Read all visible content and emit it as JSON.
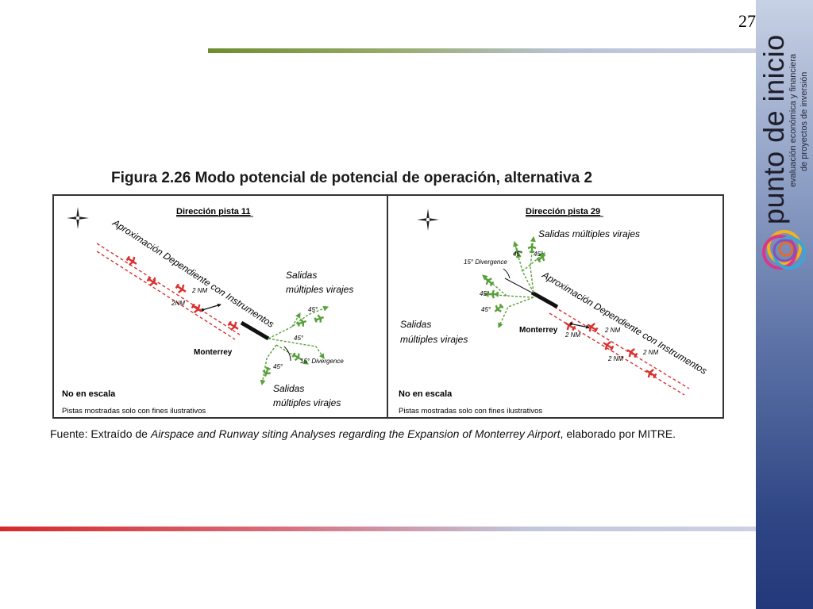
{
  "slide": {
    "page_number": "27",
    "brand": {
      "name": "punto de inicio",
      "tagline_line1": "evaluación económica y financiera",
      "tagline_line2": "de proyectos de inversión"
    },
    "figure_title": "Figura 2.26 Modo potencial de potencial de operación, alternativa 2",
    "source": {
      "prefix": "Fuente: Extraído de ",
      "italic": "Airspace and Runway siting Analyses regarding the Expansion of Monterrey Airport",
      "suffix": ", elaborado por MITRE."
    }
  },
  "panels": {
    "left": {
      "heading": "Dirección pista 11",
      "approach_label": "Aproximación Dependiente con Instrumentos",
      "departures_label_top_l1": "Salidas",
      "departures_label_top_l2": "múltiples virajes",
      "departures_label_bottom_l1": "Salidas",
      "departures_label_bottom_l2": "múltiples virajes",
      "city": "Monterrey",
      "spacing_a": "2 NM",
      "spacing_b": "2NM",
      "angle_a": "45°",
      "angle_b": "45°",
      "angle_c": "45°",
      "divergence": "15° Divergence",
      "note_scale": "No en escala",
      "note_illustrative": "Pistas mostradas solo con fines ilustrativos"
    },
    "right": {
      "heading": "Dirección pista 29",
      "approach_label": "Aproximación Dependiente con Instrumentos",
      "departures_label_top": "Salidas múltiples virajes",
      "departures_label_left_l1": "Salidas",
      "departures_label_left_l2": "múltiples virajes",
      "city": "Monterrey",
      "spacing_a": "2 NM",
      "spacing_b": "2 NM",
      "spacing_c": "2 NM",
      "spacing_d": "2 NM",
      "angle_a": "45°",
      "angle_b": "45°",
      "angle_c": "45°",
      "angle_d": "45°",
      "divergence": "15° Divergence",
      "note_scale": "No en escala",
      "note_illustrative": "Pistas mostradas solo con fines ilustrativos"
    }
  },
  "colors": {
    "approach": "#d8322f",
    "departure": "#58a03a",
    "runway": "#111111",
    "sidebar_top": "#c8d1e4",
    "sidebar_bottom": "#23387a",
    "top_rule": "#6d8e2f",
    "bottom_rule": "#d62a2a"
  },
  "icons": {
    "compass": "compass-rose-icon",
    "aircraft": "airplane-icon",
    "logo": "overlapping-rings-logo"
  }
}
